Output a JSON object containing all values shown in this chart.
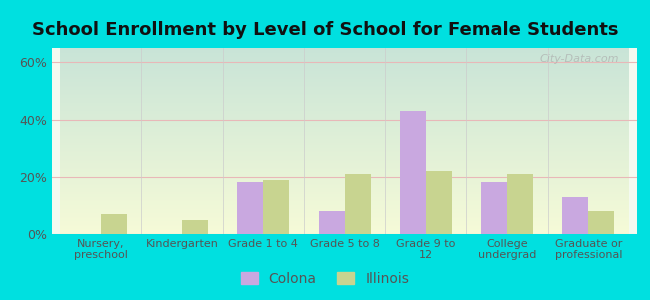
{
  "title": "School Enrollment by Level of School for Female Students",
  "categories": [
    "Nursery,\npreschool",
    "Kindergarten",
    "Grade 1 to 4",
    "Grade 5 to 8",
    "Grade 9 to\n12",
    "College\nundergrad",
    "Graduate or\nprofessional"
  ],
  "colona_values": [
    0,
    0,
    18,
    8,
    43,
    18,
    13
  ],
  "illinois_values": [
    7,
    5,
    19,
    21,
    22,
    21,
    8
  ],
  "colona_color": "#c9a8e0",
  "illinois_color": "#c8d490",
  "bar_width": 0.32,
  "ylim": [
    0,
    65
  ],
  "yticks": [
    0,
    20,
    40,
    60
  ],
  "ytick_labels": [
    "0%",
    "20%",
    "40%",
    "60%"
  ],
  "bg_color": "#00e0e0",
  "plot_bg": "#f4faf0",
  "legend_labels": [
    "Colona",
    "Illinois"
  ],
  "title_fontsize": 13,
  "watermark": "City-Data.com"
}
